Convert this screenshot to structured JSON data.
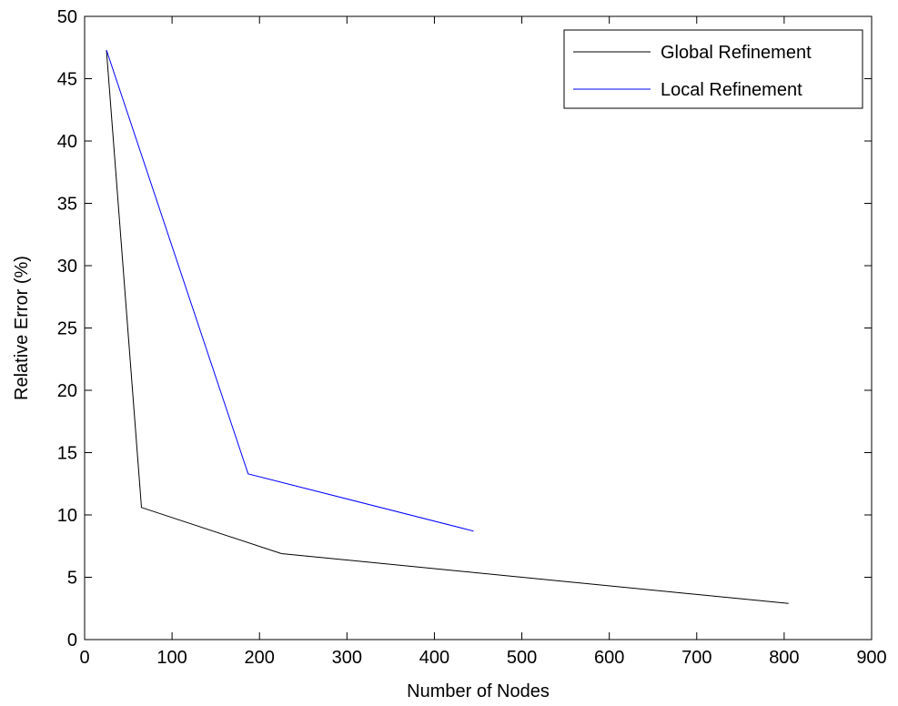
{
  "chart_data": {
    "type": "line",
    "title": "",
    "xlabel": "Number of Nodes",
    "ylabel": "Relative Error (%)",
    "xlim": [
      0,
      900
    ],
    "ylim": [
      0,
      50
    ],
    "xticks": [
      0,
      100,
      200,
      300,
      400,
      500,
      600,
      700,
      800,
      900
    ],
    "yticks": [
      0,
      5,
      10,
      15,
      20,
      25,
      30,
      35,
      40,
      45,
      50
    ],
    "grid": false,
    "legend_position": "top-right",
    "series": [
      {
        "name": "Global Refinement",
        "color": "#000000",
        "x": [
          25,
          65,
          225,
          805
        ],
        "y": [
          47.3,
          10.6,
          6.9,
          2.9
        ]
      },
      {
        "name": "Local Refinement",
        "color": "#0000ff",
        "x": [
          25,
          187,
          445
        ],
        "y": [
          47.3,
          13.3,
          8.7
        ]
      }
    ]
  }
}
